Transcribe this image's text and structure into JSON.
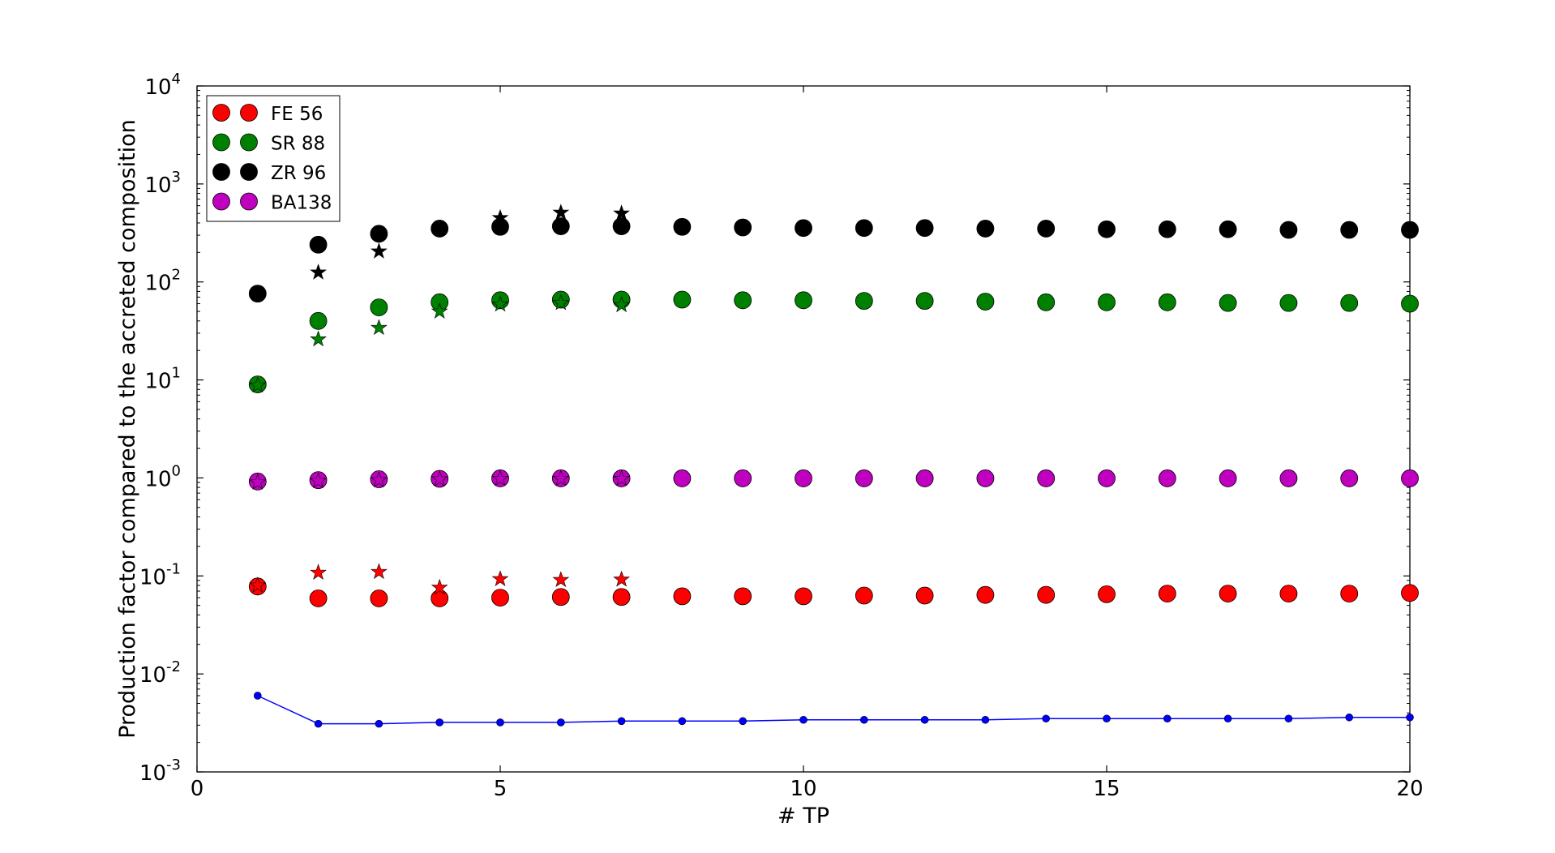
{
  "chart_data": {
    "type": "scatter",
    "xlabel": "# TP",
    "ylabel": "Production factor compared to the accreted composition",
    "xlim": [
      0,
      20
    ],
    "ylim": [
      0.001,
      10000
    ],
    "yscale": "log",
    "xticks": [
      0,
      5,
      10,
      15,
      20
    ],
    "x_tick_labels": [
      "0",
      "5",
      "10",
      "15",
      "20"
    ],
    "y_tick_labels": [
      {
        "base": "10",
        "exp": "-3"
      },
      {
        "base": "10",
        "exp": "-2"
      },
      {
        "base": "10",
        "exp": "-1"
      },
      {
        "base": "10",
        "exp": "0"
      },
      {
        "base": "10",
        "exp": "1"
      },
      {
        "base": "10",
        "exp": "2"
      },
      {
        "base": "10",
        "exp": "3"
      },
      {
        "base": "10",
        "exp": "4"
      }
    ],
    "grid": false,
    "legend_position": "top-left",
    "x": [
      1,
      2,
      3,
      4,
      5,
      6,
      7,
      8,
      9,
      10,
      11,
      12,
      13,
      14,
      15,
      16,
      17,
      18,
      19,
      20
    ],
    "series": [
      {
        "name": "FE 56",
        "color": "#ff0000",
        "marker": "circle",
        "values": [
          0.078,
          0.059,
          0.059,
          0.059,
          0.06,
          0.061,
          0.061,
          0.062,
          0.062,
          0.062,
          0.063,
          0.063,
          0.064,
          0.064,
          0.065,
          0.066,
          0.066,
          0.066,
          0.066,
          0.067
        ]
      },
      {
        "name": "SR 88",
        "color": "#008000",
        "marker": "circle",
        "values": [
          9.0,
          40,
          55,
          62,
          65,
          66,
          66,
          66,
          65,
          65,
          64,
          64,
          63,
          62,
          62,
          62,
          61,
          61,
          61,
          60
        ]
      },
      {
        "name": "ZR 96",
        "color": "#000000",
        "marker": "circle",
        "values": [
          76,
          240,
          310,
          350,
          365,
          370,
          370,
          365,
          360,
          355,
          355,
          355,
          350,
          350,
          345,
          345,
          345,
          340,
          340,
          340
        ]
      },
      {
        "name": "BA138",
        "color": "#bf00bf",
        "marker": "circle",
        "values": [
          0.92,
          0.95,
          0.97,
          0.98,
          0.99,
          0.99,
          0.99,
          0.99,
          0.99,
          0.99,
          0.99,
          0.99,
          0.99,
          0.99,
          0.99,
          0.99,
          0.99,
          0.99,
          0.99,
          0.99
        ]
      }
    ],
    "star_series": [
      {
        "color": "#ff0000",
        "x": [
          1,
          2,
          3,
          4,
          5,
          6,
          7
        ],
        "values": [
          0.08,
          0.108,
          0.11,
          0.076,
          0.093,
          0.091,
          0.092
        ]
      },
      {
        "color": "#008000",
        "x": [
          1,
          2,
          3,
          4,
          5,
          6,
          7
        ],
        "values": [
          8.8,
          26,
          34,
          50,
          59,
          61,
          58
        ]
      },
      {
        "color": "#000000",
        "x": [
          2,
          3,
          5,
          6,
          7
        ],
        "values": [
          125,
          205,
          450,
          510,
          500
        ]
      },
      {
        "color": "#bf00bf",
        "x": [
          1,
          2,
          3,
          4,
          5,
          6,
          7
        ],
        "values": [
          0.9,
          0.93,
          0.95,
          0.97,
          0.98,
          0.98,
          0.98
        ]
      }
    ],
    "line_series": {
      "color": "#0000ff",
      "x": [
        1,
        2,
        3,
        4,
        5,
        6,
        7,
        8,
        9,
        10,
        11,
        12,
        13,
        14,
        15,
        16,
        17,
        18,
        19,
        20
      ],
      "values": [
        0.006,
        0.0031,
        0.0031,
        0.0032,
        0.0032,
        0.0032,
        0.0033,
        0.0033,
        0.0033,
        0.0034,
        0.0034,
        0.0034,
        0.0034,
        0.0035,
        0.0035,
        0.0035,
        0.0035,
        0.0035,
        0.0036,
        0.0036
      ]
    }
  }
}
